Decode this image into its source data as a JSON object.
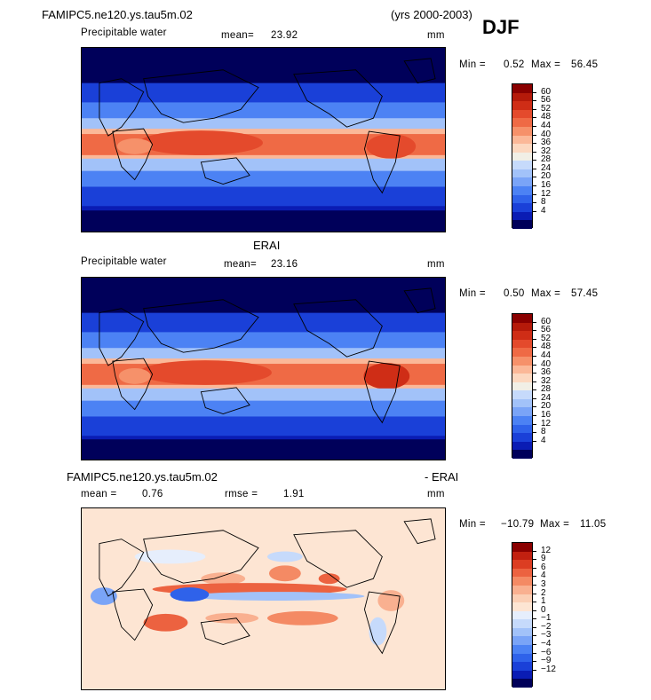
{
  "header": {
    "case_name": "FAMIPC5.ne120.ys.tau5m.02",
    "years": "(yrs 2000-2003)",
    "season": "DJF"
  },
  "colors": {
    "pw_scale": [
      "#00005a",
      "#0a1cb4",
      "#1a40d8",
      "#2f62ea",
      "#4c82f4",
      "#7aa4f7",
      "#a2c2f9",
      "#c6dafb",
      "#f1efe6",
      "#fcd8c0",
      "#fbb898",
      "#f6916a",
      "#ef6a45",
      "#e44a2c",
      "#cf2d16",
      "#b51a0a",
      "#8a0000"
    ],
    "diff_scale": [
      "#00005a",
      "#0a1cb4",
      "#1a40d8",
      "#2f62ea",
      "#4c82f4",
      "#7aa4f7",
      "#a2c2f9",
      "#c6dafb",
      "#e6eefc",
      "#fde5d3",
      "#fbcfb5",
      "#f9b090",
      "#f48a64",
      "#ec6240",
      "#dc3d22",
      "#c22010",
      "#8a0000"
    ]
  },
  "chart_data": [
    {
      "type": "heatmap",
      "title": "FAMIPC5.ne120.ys.tau5m.02",
      "variable": "Precipitable water",
      "mean_label": "mean=",
      "mean": "23.92",
      "units": "mm",
      "min_label": "Min =",
      "min": "0.52",
      "max_label": "Max =",
      "max": "56.45",
      "colorbar_levels": [
        "60",
        "56",
        "52",
        "48",
        "44",
        "40",
        "36",
        "32",
        "28",
        "24",
        "20",
        "16",
        "12",
        "8",
        "4"
      ]
    },
    {
      "type": "heatmap",
      "title": "ERAI",
      "variable": "Precipitable water",
      "mean_label": "mean=",
      "mean": "23.16",
      "units": "mm",
      "min_label": "Min =",
      "min": "0.50",
      "max_label": "Max =",
      "max": "57.45",
      "colorbar_levels": [
        "60",
        "56",
        "52",
        "48",
        "44",
        "40",
        "36",
        "32",
        "28",
        "24",
        "20",
        "16",
        "12",
        "8",
        "4"
      ]
    },
    {
      "type": "heatmap",
      "title": "FAMIPC5.ne120.ys.tau5m.02",
      "title_suffix": "- ERAI",
      "mean_label": "mean =",
      "mean": "0.76",
      "rmse_label": "rmse =",
      "rmse": "1.91",
      "units": "mm",
      "min_label": "Min =",
      "min": "−10.79",
      "max_label": "Max =",
      "max": "11.05",
      "colorbar_levels": [
        "12",
        "9",
        "6",
        "4",
        "3",
        "2",
        "1",
        "0",
        "−1",
        "−2",
        "−3",
        "−4",
        "−6",
        "−9",
        "−12"
      ]
    }
  ]
}
